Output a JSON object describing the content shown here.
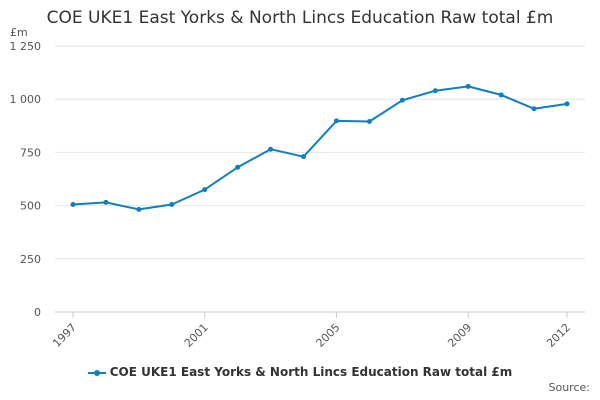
{
  "chart_data": {
    "type": "line",
    "title": "COE UKE1 East Yorks & North Lincs Education Raw total £m",
    "ylabel": "£m",
    "xlabel": "",
    "ylim": [
      0,
      1250
    ],
    "xlim": [
      1997,
      2012
    ],
    "y_ticks": [
      0,
      250,
      500,
      750,
      1000,
      1250
    ],
    "y_tick_labels": [
      "0",
      "250",
      "500",
      "750",
      "1 000",
      "1 250"
    ],
    "x_ticks": [
      1997,
      2001,
      2005,
      2009,
      2012
    ],
    "x_tick_labels": [
      "1997",
      "2001",
      "2005",
      "2009",
      "2012"
    ],
    "grid": "horizontal",
    "legend_position": "bottom",
    "series": [
      {
        "name": "COE UKE1 East Yorks & North Lincs Education Raw total £m",
        "color": "#0f7fbf",
        "x": [
          1997,
          1998,
          1999,
          2000,
          2001,
          2002,
          2003,
          2004,
          2005,
          2006,
          2007,
          2008,
          2009,
          2010,
          2011,
          2012
        ],
        "values": [
          505,
          515,
          482,
          505,
          575,
          680,
          765,
          730,
          898,
          895,
          995,
          1040,
          1060,
          1020,
          955,
          978
        ]
      }
    ]
  },
  "source_label": "Source:"
}
